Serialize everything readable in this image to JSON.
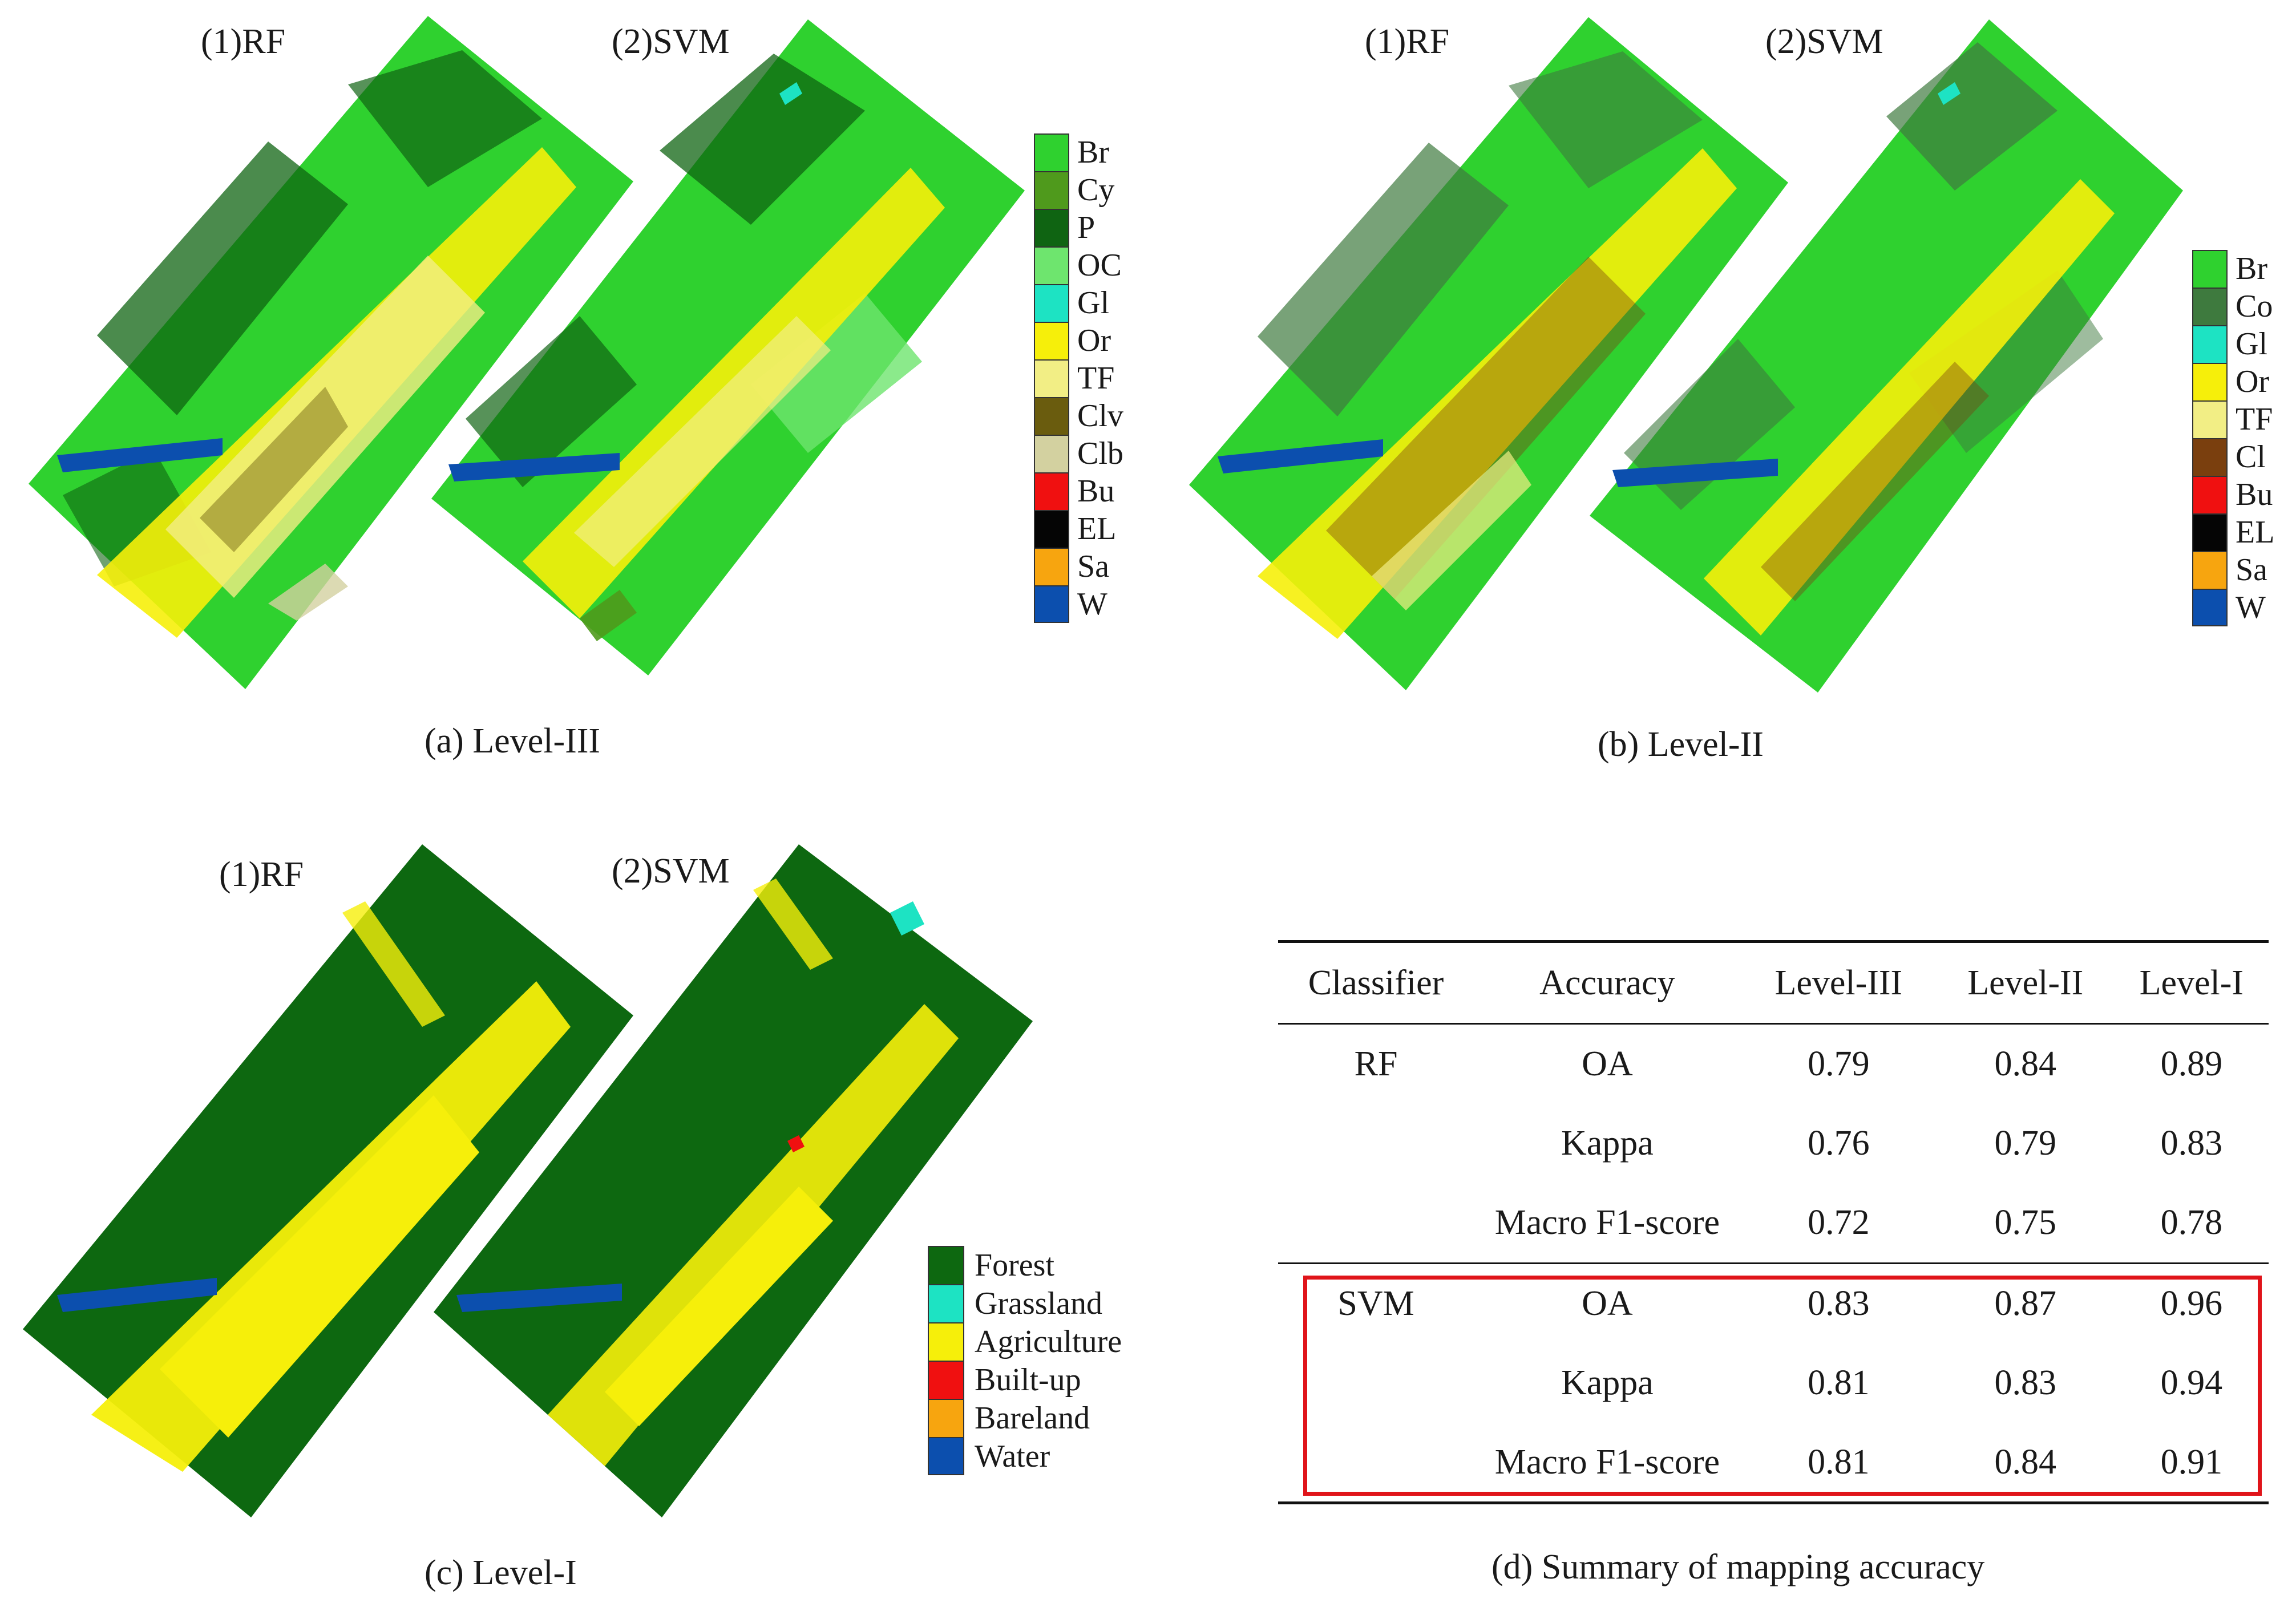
{
  "panels": {
    "a": {
      "caption": "(a)  Level-III",
      "rf_label": "(1)RF",
      "svm_label": "(2)SVM",
      "legend": [
        {
          "code": "Br",
          "color": "#2fd12f"
        },
        {
          "code": "Cy",
          "color": "#4f9a1c"
        },
        {
          "code": "P",
          "color": "#0f6412"
        },
        {
          "code": "OC",
          "color": "#6ee56e"
        },
        {
          "code": "Gl",
          "color": "#1de3c3"
        },
        {
          "code": "Or",
          "color": "#f6ef0a"
        },
        {
          "code": "TF",
          "color": "#f2ee85"
        },
        {
          "code": "Clv",
          "color": "#6a5c0e"
        },
        {
          "code": "Clb",
          "color": "#d3d1a0"
        },
        {
          "code": "Bu",
          "color": "#f01010"
        },
        {
          "code": "EL",
          "color": "#050505"
        },
        {
          "code": "Sa",
          "color": "#f7a50f"
        },
        {
          "code": "W",
          "color": "#0c4fae"
        }
      ]
    },
    "b": {
      "caption": "(b) Level-II",
      "rf_label": "(1)RF",
      "svm_label": "(2)SVM",
      "legend": [
        {
          "code": "Br",
          "color": "#2fd12f"
        },
        {
          "code": "Co",
          "color": "#3e7a3e"
        },
        {
          "code": "Gl",
          "color": "#1de3c3"
        },
        {
          "code": "Or",
          "color": "#f6ef0a"
        },
        {
          "code": "TF",
          "color": "#f2ee85"
        },
        {
          "code": "Cl",
          "color": "#7a3f0e"
        },
        {
          "code": "Bu",
          "color": "#f01010"
        },
        {
          "code": "EL",
          "color": "#050505"
        },
        {
          "code": "Sa",
          "color": "#f7a50f"
        },
        {
          "code": "W",
          "color": "#0c4fae"
        }
      ]
    },
    "c": {
      "caption": "(c) Level-I",
      "rf_label": "(1)RF",
      "svm_label": "(2)SVM",
      "legend": [
        {
          "code": "Forest",
          "color": "#0d6810"
        },
        {
          "code": "Grassland",
          "color": "#1de3c3"
        },
        {
          "code": "Agriculture",
          "color": "#f6ef0a"
        },
        {
          "code": "Built-up",
          "color": "#f01010"
        },
        {
          "code": "Bareland",
          "color": "#f7a50f"
        },
        {
          "code": "Water",
          "color": "#0c4fae"
        }
      ]
    },
    "d": {
      "caption": "(d) Summary of mapping accuracy",
      "headers": [
        "Classifier",
        "Accuracy",
        "Level-III",
        "Level-II",
        "Level-I"
      ],
      "rows": [
        {
          "classifier": "RF",
          "metric": "OA",
          "l3": "0.79",
          "l2": "0.84",
          "l1": "0.89"
        },
        {
          "classifier": "",
          "metric": "Kappa",
          "l3": "0.76",
          "l2": "0.79",
          "l1": "0.83"
        },
        {
          "classifier": "",
          "metric": "Macro F1-score",
          "l3": "0.72",
          "l2": "0.75",
          "l1": "0.78"
        },
        {
          "classifier": "SVM",
          "metric": "OA",
          "l3": "0.83",
          "l2": "0.87",
          "l1": "0.96"
        },
        {
          "classifier": "",
          "metric": "Kappa",
          "l3": "0.81",
          "l2": "0.83",
          "l1": "0.94"
        },
        {
          "classifier": "",
          "metric": "Macro F1-score",
          "l3": "0.81",
          "l2": "0.84",
          "l1": "0.91"
        }
      ]
    }
  }
}
